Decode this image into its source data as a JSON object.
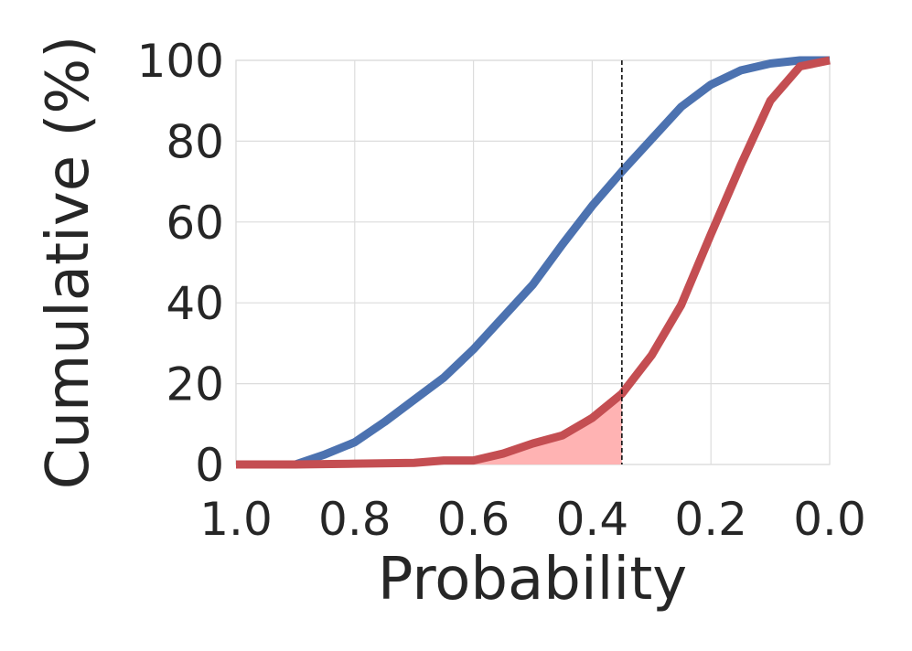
{
  "chart_data": {
    "type": "line",
    "xlabel": "Probability",
    "ylabel": "Cumulative (%)",
    "xlim": [
      1.0,
      0.0
    ],
    "ylim": [
      0,
      100
    ],
    "x_reversed": true,
    "grid": true,
    "x_ticks": [
      "1.0",
      "0.8",
      "0.6",
      "0.4",
      "0.2",
      "0.0"
    ],
    "x_tick_values": [
      1.0,
      0.8,
      0.6,
      0.4,
      0.2,
      0.0
    ],
    "y_ticks": [
      "0",
      "20",
      "40",
      "60",
      "80",
      "100"
    ],
    "y_tick_values": [
      0,
      20,
      40,
      60,
      80,
      100
    ],
    "threshold_x": 0.35,
    "shaded_region": {
      "series_index": 1,
      "x_from": 1.0,
      "x_to": 0.35,
      "color": "#ffb3b3"
    },
    "series": [
      {
        "color": "#4c72b0",
        "x": [
          1.0,
          0.9,
          0.85,
          0.8,
          0.75,
          0.7,
          0.65,
          0.6,
          0.55,
          0.5,
          0.45,
          0.4,
          0.35,
          0.3,
          0.25,
          0.2,
          0.15,
          0.1,
          0.05,
          0.0
        ],
        "y": [
          0,
          0,
          2.5,
          5.5,
          10.5,
          16,
          21.5,
          28.5,
          36.5,
          44.5,
          54.5,
          64,
          72.5,
          80.5,
          88.5,
          94,
          97.5,
          99.2,
          100,
          100
        ]
      },
      {
        "color": "#c44e52",
        "x": [
          1.0,
          0.9,
          0.8,
          0.7,
          0.65,
          0.6,
          0.55,
          0.5,
          0.45,
          0.4,
          0.35,
          0.3,
          0.25,
          0.2,
          0.15,
          0.1,
          0.05,
          0.0
        ],
        "y": [
          0,
          0,
          0.2,
          0.4,
          1,
          1,
          2.7,
          5.2,
          7.2,
          11.5,
          17.5,
          27,
          39.5,
          57,
          74,
          90,
          98.5,
          100
        ]
      }
    ]
  }
}
